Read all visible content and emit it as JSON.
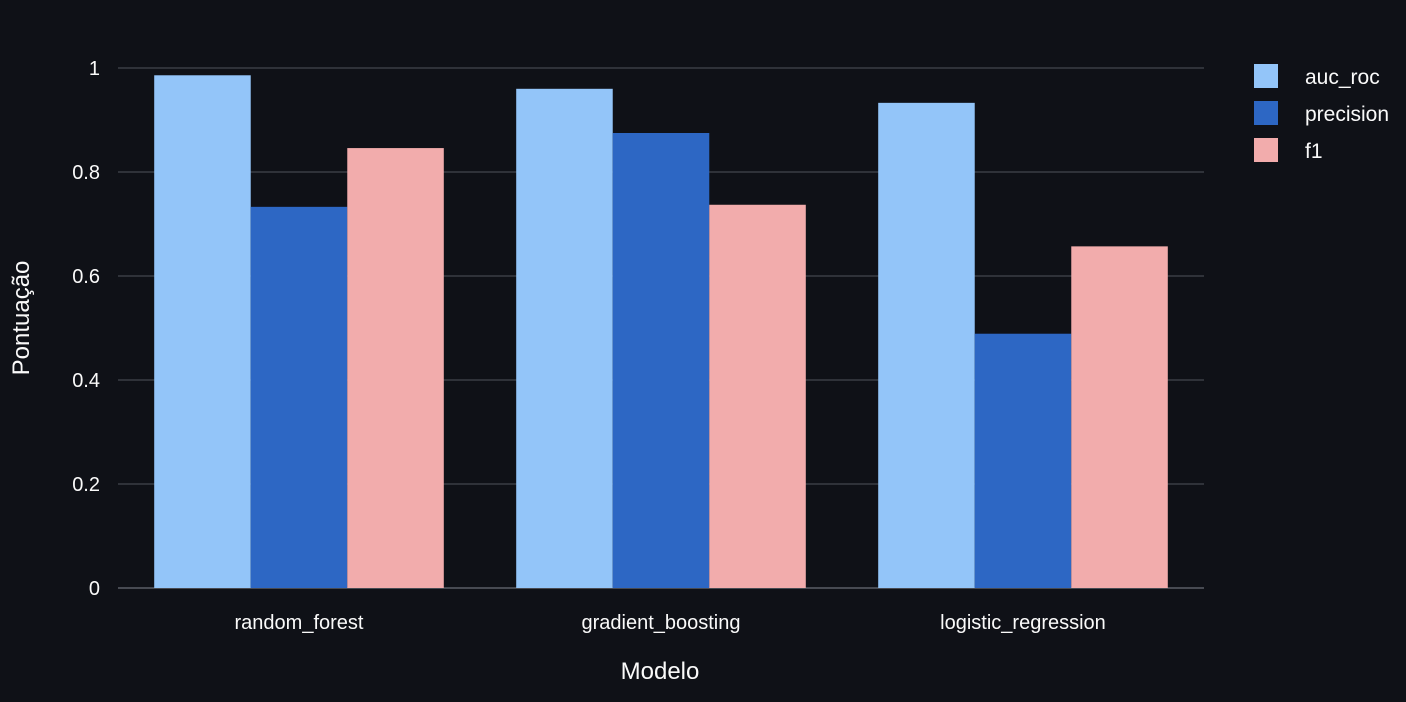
{
  "colors": {
    "background": "#0f1117",
    "text": "#fafafa",
    "grid": "#3a3d45"
  },
  "chart_data": {
    "type": "bar",
    "categories": [
      "random_forest",
      "gradient_boosting",
      "logistic_regression"
    ],
    "series": [
      {
        "name": "auc_roc",
        "color": "#93c5f9",
        "values": [
          0.986,
          0.96,
          0.933
        ]
      },
      {
        "name": "precision",
        "color": "#2d67c4",
        "values": [
          0.733,
          0.875,
          0.489
        ]
      },
      {
        "name": "f1",
        "color": "#f2acac",
        "values": [
          0.846,
          0.737,
          0.657
        ]
      }
    ],
    "xlabel": "Modelo",
    "ylabel": "Pontuação",
    "ylim": [
      0,
      1
    ],
    "yticks": [
      0,
      0.2,
      0.4,
      0.6,
      0.8,
      1
    ],
    "ytick_labels": [
      "0",
      "0.2",
      "0.4",
      "0.6",
      "0.8",
      "1"
    ],
    "grid": true,
    "legend_position": "top-right"
  }
}
